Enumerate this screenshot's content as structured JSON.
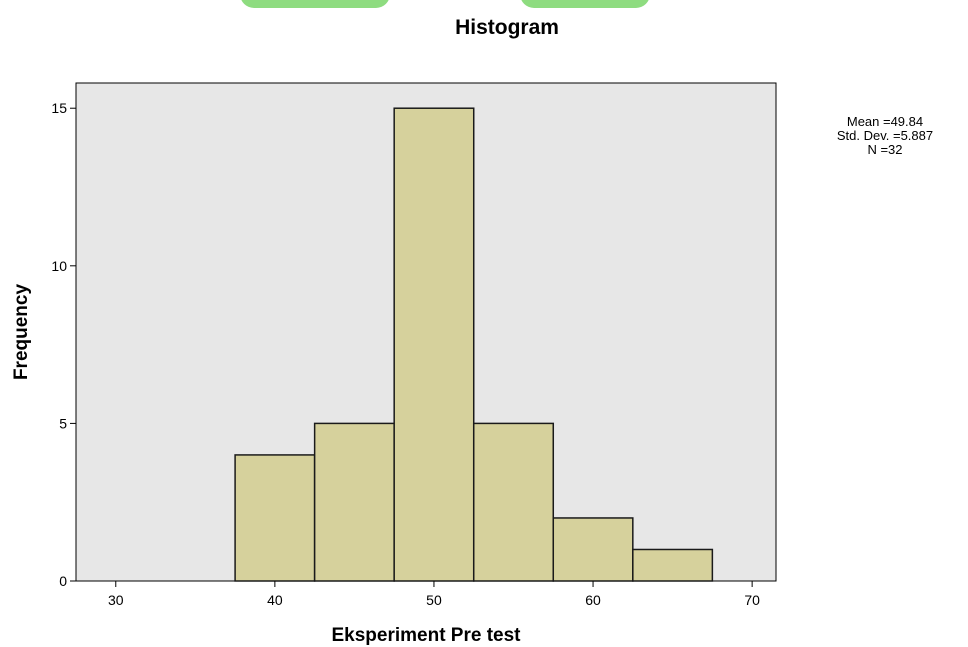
{
  "chart_data": {
    "type": "bar",
    "title": "Histogram",
    "xlabel": "Eksperiment Pre test",
    "ylabel": "Frequency",
    "xlim": [
      27.5,
      71.5
    ],
    "ylim": [
      0,
      15.8
    ],
    "x_ticks": [
      30,
      40,
      50,
      60,
      70
    ],
    "y_ticks": [
      0,
      5,
      10,
      15
    ],
    "bin_width": 5,
    "bins": [
      {
        "center": 40,
        "count": 4
      },
      {
        "center": 45,
        "count": 5
      },
      {
        "center": 50,
        "count": 15
      },
      {
        "center": 55,
        "count": 5
      },
      {
        "center": 60,
        "count": 2
      },
      {
        "center": 65,
        "count": 1
      }
    ],
    "stats": [
      "Mean =49.84",
      "Std. Dev. =5.887",
      "N =32"
    ],
    "colors": {
      "plot_bg": "#e7e7e7",
      "bar_fill": "#d6d19c",
      "bar_stroke": "#1a1a1a"
    }
  }
}
